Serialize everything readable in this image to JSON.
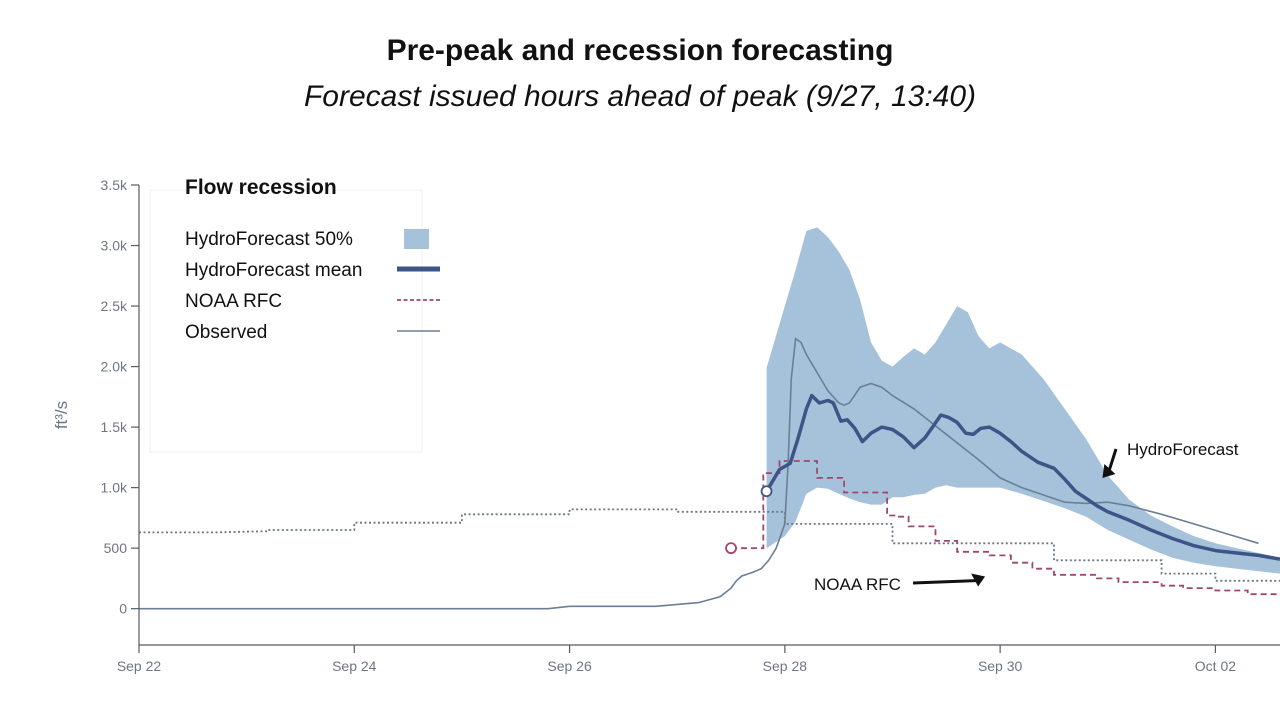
{
  "header": {
    "title": "Pre-peak and recession forecasting",
    "subtitle": "Forecast issued hours ahead of peak (9/27, 13:40)"
  },
  "chart_data": {
    "type": "line",
    "ylabel": "ft³/s",
    "x_unit": "days since Sep 22 00:00",
    "xlim": [
      0,
      10.6
    ],
    "ylim": [
      -300,
      3500
    ],
    "x_ticks": [
      {
        "x": 0,
        "label": "Sep 22"
      },
      {
        "x": 2,
        "label": "Sep 24"
      },
      {
        "x": 4,
        "label": "Sep 26"
      },
      {
        "x": 6,
        "label": "Sep 28"
      },
      {
        "x": 8,
        "label": "Sep 30"
      },
      {
        "x": 10,
        "label": "Oct 02"
      }
    ],
    "y_ticks": [
      {
        "y": 0,
        "label": "0"
      },
      {
        "y": 500,
        "label": "500"
      },
      {
        "y": 1000,
        "label": "1.0k"
      },
      {
        "y": 1500,
        "label": "1.5k"
      },
      {
        "y": 2000,
        "label": "2.0k"
      },
      {
        "y": 2500,
        "label": "2.5k"
      },
      {
        "y": 3000,
        "label": "3.0k"
      },
      {
        "y": 3500,
        "label": "3.5k"
      }
    ],
    "legend": {
      "title": "Flow recession",
      "entries": [
        {
          "label": "HydroForecast 50%",
          "color": "#a5c2da",
          "kind": "area"
        },
        {
          "label": "HydroForecast mean",
          "color": "#3d5486",
          "kind": "thick-line"
        },
        {
          "label": "NOAA RFC",
          "color": "#a0476d",
          "kind": "dashed-line"
        },
        {
          "label": "Observed",
          "color": "#6b7f94",
          "kind": "line"
        }
      ]
    },
    "series": [
      {
        "name": "HydroForecast 50%",
        "kind": "band",
        "color": "#a5c2da",
        "x": [
          5.83,
          5.9,
          6.0,
          6.1,
          6.2,
          6.3,
          6.4,
          6.5,
          6.6,
          6.7,
          6.8,
          6.9,
          7.0,
          7.1,
          7.2,
          7.3,
          7.4,
          7.5,
          7.6,
          7.7,
          7.8,
          7.9,
          8.0,
          8.2,
          8.4,
          8.6,
          8.8,
          9.0,
          9.2,
          9.4,
          9.6,
          9.8,
          10.0,
          10.2,
          10.4,
          10.6
        ],
        "upper": [
          1990,
          2200,
          2500,
          2800,
          3120,
          3150,
          3070,
          2950,
          2800,
          2550,
          2200,
          2050,
          2000,
          2080,
          2150,
          2100,
          2200,
          2350,
          2500,
          2450,
          2250,
          2150,
          2200,
          2100,
          1900,
          1650,
          1400,
          1100,
          900,
          770,
          680,
          600,
          540,
          500,
          460,
          420
        ],
        "lower": [
          500,
          540,
          600,
          720,
          950,
          1000,
          990,
          950,
          910,
          880,
          860,
          860,
          920,
          920,
          940,
          950,
          1000,
          1020,
          1000,
          1000,
          1000,
          1000,
          1000,
          950,
          890,
          830,
          760,
          650,
          570,
          490,
          420,
          380,
          350,
          330,
          310,
          290
        ]
      },
      {
        "name": "HydroForecast mean",
        "kind": "line",
        "color": "#3d5486",
        "x": [
          5.83,
          5.95,
          6.05,
          6.12,
          6.2,
          6.25,
          6.32,
          6.4,
          6.45,
          6.52,
          6.58,
          6.65,
          6.72,
          6.8,
          6.9,
          7.0,
          7.1,
          7.2,
          7.3,
          7.38,
          7.45,
          7.52,
          7.6,
          7.68,
          7.75,
          7.82,
          7.9,
          8.0,
          8.1,
          8.2,
          8.35,
          8.5,
          8.6,
          8.7,
          8.8,
          8.9,
          9.0,
          9.2,
          9.4,
          9.6,
          9.8,
          10.0,
          10.2,
          10.4,
          10.6
        ],
        "y": [
          970,
          1150,
          1200,
          1400,
          1650,
          1760,
          1700,
          1720,
          1700,
          1550,
          1560,
          1490,
          1380,
          1450,
          1500,
          1480,
          1420,
          1330,
          1410,
          1510,
          1600,
          1580,
          1540,
          1450,
          1440,
          1490,
          1500,
          1450,
          1380,
          1300,
          1210,
          1160,
          1070,
          970,
          910,
          850,
          800,
          730,
          650,
          580,
          520,
          480,
          460,
          440,
          410
        ]
      },
      {
        "name": "NOAA RFC",
        "kind": "step-dashed",
        "color": "#a0476d",
        "x": [
          5.5,
          5.8,
          5.8,
          5.95,
          5.95,
          6.3,
          6.3,
          6.55,
          6.55,
          6.8,
          6.8,
          6.95,
          6.95,
          7.05,
          7.05,
          7.15,
          7.15,
          7.4,
          7.4,
          7.6,
          7.6,
          7.9,
          7.9,
          8.1,
          8.1,
          8.3,
          8.3,
          8.5,
          8.5,
          8.9,
          8.9,
          9.1,
          9.1,
          9.5,
          9.5,
          9.7,
          9.7,
          10.0,
          10.0,
          10.3,
          10.3,
          10.6
        ],
        "y": [
          500,
          500,
          1120,
          1120,
          1220,
          1220,
          1080,
          1080,
          960,
          960,
          960,
          960,
          770,
          770,
          760,
          760,
          680,
          680,
          560,
          560,
          470,
          470,
          440,
          440,
          380,
          380,
          330,
          330,
          280,
          280,
          250,
          250,
          220,
          220,
          190,
          190,
          170,
          170,
          150,
          150,
          120,
          120
        ]
      },
      {
        "name": "NOAA RFC (previous forecasts)",
        "kind": "step-dotted",
        "color": "#6c7684",
        "x": [
          0,
          0.7,
          0.7,
          1.2,
          1.2,
          2.0,
          2.0,
          3.0,
          3.0,
          4.0,
          4.0,
          5.0,
          5.0,
          6.0,
          6.0,
          7.0,
          7.0,
          8.0,
          8.0,
          8.5,
          8.5,
          9.5,
          9.5,
          10.0,
          10.0,
          10.6
        ],
        "y": [
          630,
          630,
          630,
          640,
          650,
          650,
          710,
          710,
          780,
          780,
          820,
          820,
          800,
          800,
          700,
          700,
          540,
          540,
          540,
          540,
          400,
          400,
          290,
          290,
          230,
          230
        ]
      },
      {
        "name": "Observed",
        "kind": "line",
        "color": "#6b7f94",
        "x": [
          0,
          3.8,
          4.0,
          4.5,
          4.8,
          5.2,
          5.4,
          5.5,
          5.55,
          5.6,
          5.7,
          5.78,
          5.85,
          5.92,
          6.0,
          6.03,
          6.06,
          6.1,
          6.15,
          6.2,
          6.3,
          6.4,
          6.5,
          6.55,
          6.6,
          6.7,
          6.8,
          6.9,
          7.0,
          7.2,
          7.5,
          7.8,
          8.0,
          8.2,
          8.4,
          8.6,
          8.8,
          9.0,
          9.2,
          9.5,
          9.8,
          10.1,
          10.4
        ],
        "y": [
          0,
          0,
          20,
          20,
          20,
          50,
          100,
          170,
          230,
          270,
          300,
          330,
          400,
          500,
          700,
          1200,
          1900,
          2230,
          2200,
          2100,
          1950,
          1800,
          1700,
          1680,
          1700,
          1830,
          1860,
          1830,
          1760,
          1650,
          1440,
          1230,
          1080,
          1000,
          940,
          880,
          870,
          880,
          850,
          780,
          700,
          620,
          540
        ]
      }
    ],
    "markers": [
      {
        "series": "HydroForecast mean",
        "x": 5.83,
        "y": 970,
        "color": "#3d5486"
      },
      {
        "series": "NOAA RFC",
        "x": 5.5,
        "y": 500,
        "color": "#a0476d"
      }
    ],
    "annotations": [
      {
        "text": "HydroForecast",
        "target_x": 8.95,
        "target_y": 1080
      },
      {
        "text": "NOAA RFC",
        "target_x": 7.6,
        "target_y": 390
      }
    ]
  }
}
